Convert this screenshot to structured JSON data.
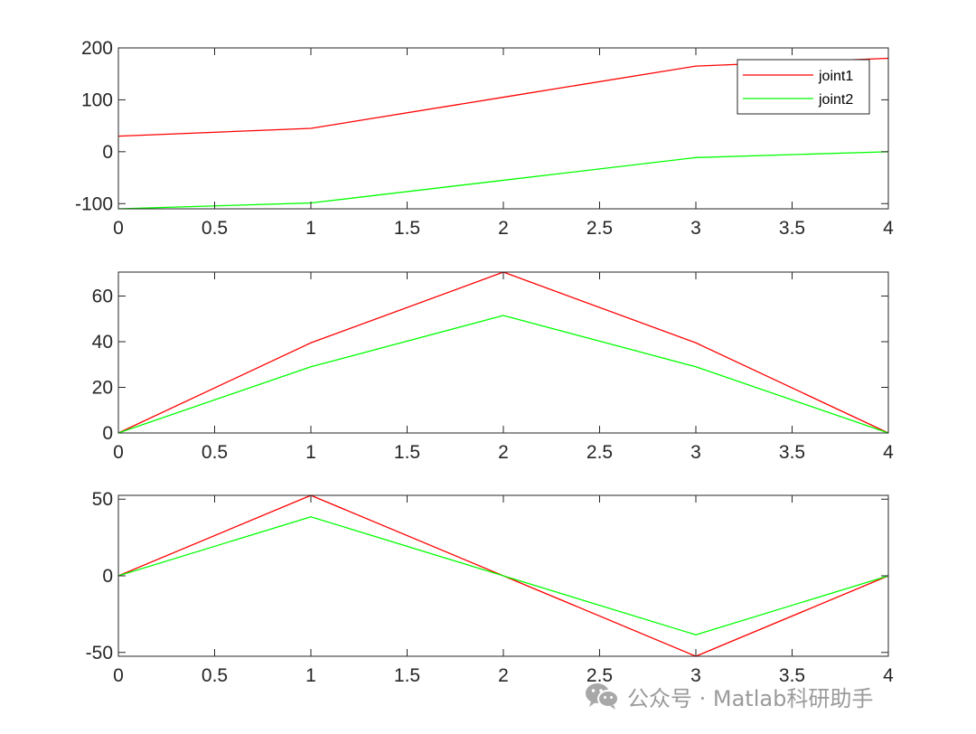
{
  "chart_data": [
    {
      "type": "line",
      "x": [
        0,
        1,
        2,
        3,
        4
      ],
      "series": [
        {
          "name": "joint1",
          "color": "#ff0000",
          "values": [
            30,
            45,
            105,
            165,
            180
          ]
        },
        {
          "name": "joint2",
          "color": "#00ff00",
          "values": [
            -110,
            -98.75,
            -55,
            -11.25,
            0
          ]
        }
      ],
      "xlim": [
        0,
        4
      ],
      "ylim": [
        -110,
        200
      ],
      "xticks": [
        0,
        0.5,
        1,
        1.5,
        2,
        2.5,
        3,
        3.5,
        4
      ],
      "xticklabels": [
        "0",
        "0.5",
        "1",
        "1.5",
        "2",
        "2.5",
        "3",
        "3.5",
        "4"
      ],
      "yticks": [
        -100,
        0,
        100,
        200
      ],
      "yticklabels": [
        "-100",
        "0",
        "100",
        "200"
      ],
      "legend": {
        "position": "top-right",
        "entries": [
          "joint1",
          "joint2"
        ]
      },
      "grid": false
    },
    {
      "type": "line",
      "x": [
        0,
        1,
        2,
        3,
        4
      ],
      "series": [
        {
          "name": "joint1",
          "color": "#ff0000",
          "values": [
            0,
            39.5,
            70.5,
            39.5,
            0
          ]
        },
        {
          "name": "joint2",
          "color": "#00ff00",
          "values": [
            0,
            29,
            51.5,
            29,
            0
          ]
        }
      ],
      "xlim": [
        0,
        4
      ],
      "ylim": [
        0,
        70.5
      ],
      "xticks": [
        0,
        0.5,
        1,
        1.5,
        2,
        2.5,
        3,
        3.5,
        4
      ],
      "xticklabels": [
        "0",
        "0.5",
        "1",
        "1.5",
        "2",
        "2.5",
        "3",
        "3.5",
        "4"
      ],
      "yticks": [
        0,
        20,
        40,
        60
      ],
      "yticklabels": [
        "0",
        "20",
        "40",
        "60"
      ],
      "grid": false
    },
    {
      "type": "line",
      "x": [
        0,
        1,
        2,
        3,
        4
      ],
      "series": [
        {
          "name": "joint1",
          "color": "#ff0000",
          "values": [
            0,
            52.5,
            0,
            -52.5,
            0
          ]
        },
        {
          "name": "joint2",
          "color": "#00ff00",
          "values": [
            0,
            38.5,
            0,
            -38.5,
            0
          ]
        }
      ],
      "xlim": [
        0,
        4
      ],
      "ylim": [
        -52.5,
        52.5
      ],
      "xticks": [
        0,
        0.5,
        1,
        1.5,
        2,
        2.5,
        3,
        3.5,
        4
      ],
      "xticklabels": [
        "0",
        "0.5",
        "1",
        "1.5",
        "2",
        "2.5",
        "3",
        "3.5",
        "4"
      ],
      "yticks": [
        -50,
        0,
        50
      ],
      "yticklabels": [
        "-50",
        "0",
        "50"
      ],
      "grid": false
    }
  ],
  "watermark": {
    "text": "公众号 · Matlab科研助手",
    "icon": "wechat-icon"
  }
}
